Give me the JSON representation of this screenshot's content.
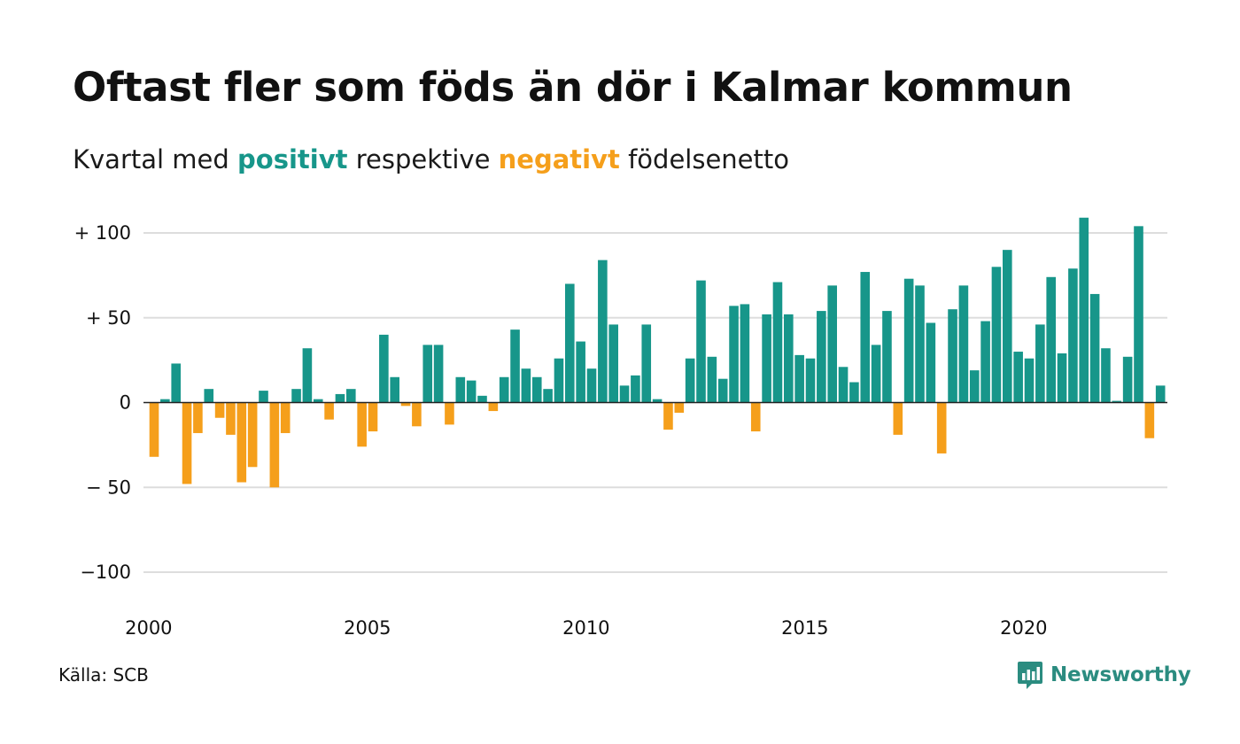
{
  "title": "Oftast fler som föds än dör i Kalmar kommun",
  "subtitle": {
    "prefix": "Kvartal med ",
    "positive": "positivt",
    "middle": " respektive ",
    "negative": "negativt",
    "suffix": " födelsenetto"
  },
  "source": "Källa: SCB",
  "brand": {
    "name": "Newsworthy",
    "icon": "newsworthy-logo-icon"
  },
  "colors": {
    "positive": "#17968a",
    "negative": "#f59f1b",
    "grid": "#dddddd",
    "zero_line": "#222222"
  },
  "chart_data": {
    "type": "bar",
    "title": "Oftast fler som föds än dör i Kalmar kommun",
    "subtitle": "Kvartal med positivt respektive negativt födelsenetto",
    "xlabel": "",
    "ylabel": "",
    "ylim": [
      -100,
      100
    ],
    "y_ticks": [
      {
        "value": 100,
        "label": "+ 100"
      },
      {
        "value": 50,
        "label": "+  50"
      },
      {
        "value": 0,
        "label": "0"
      },
      {
        "value": -50,
        "label": "− 50"
      },
      {
        "value": -100,
        "label": "−100"
      }
    ],
    "x_ticks": [
      {
        "year": 2000,
        "label": "2000"
      },
      {
        "year": 2005,
        "label": "2005"
      },
      {
        "year": 2010,
        "label": "2010"
      },
      {
        "year": 2015,
        "label": "2015"
      },
      {
        "year": 2020,
        "label": "2020"
      }
    ],
    "start_year": 2000,
    "values": [
      -32,
      2,
      23,
      -48,
      -18,
      8,
      -9,
      -19,
      -47,
      -38,
      7,
      -50,
      -18,
      8,
      32,
      2,
      -10,
      5,
      8,
      -26,
      -17,
      40,
      15,
      -2,
      -14,
      34,
      34,
      -13,
      15,
      13,
      4,
      -5,
      15,
      43,
      20,
      15,
      8,
      26,
      70,
      36,
      20,
      84,
      46,
      10,
      16,
      46,
      2,
      -16,
      -6,
      26,
      72,
      27,
      14,
      57,
      58,
      -17,
      52,
      71,
      52,
      28,
      26,
      54,
      69,
      21,
      12,
      77,
      34,
      54,
      -19,
      73,
      69,
      47,
      -30,
      55,
      69,
      19,
      48,
      80,
      90,
      30,
      26,
      46,
      74,
      29,
      79,
      109,
      64,
      32,
      1,
      27,
      104,
      -21,
      10
    ],
    "grid": true,
    "legend": "none"
  }
}
